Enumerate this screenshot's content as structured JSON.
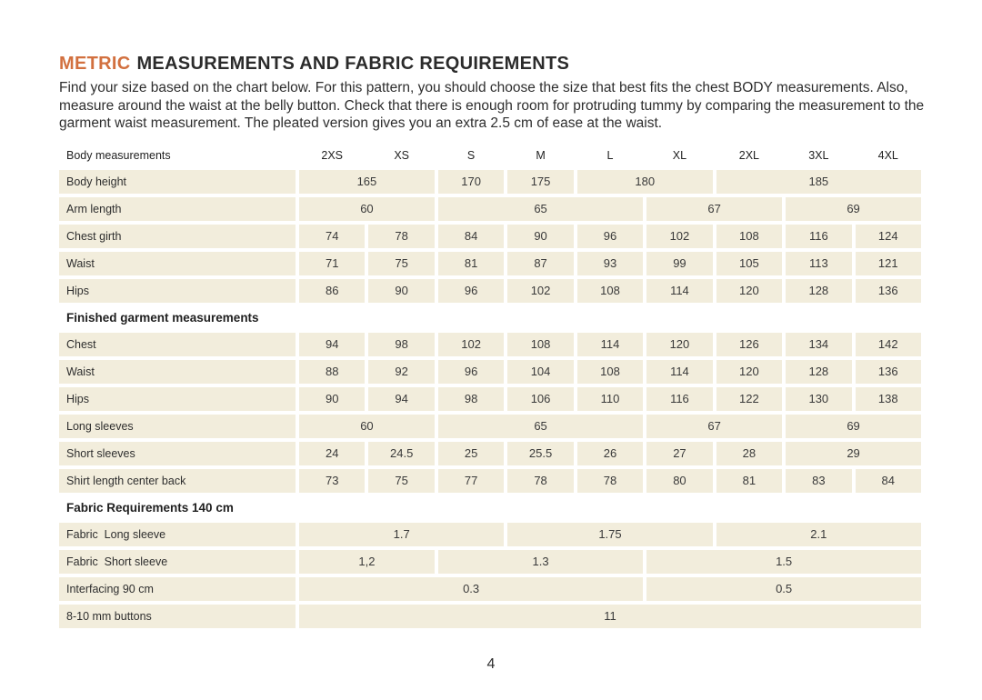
{
  "page": {
    "title_highlight": "METRIC",
    "title_rest": "MEASUREMENTS AND FABRIC REQUIREMENTS",
    "intro": "Find your size based on the chart below. For this pattern, you should choose the size that best fits the chest BODY measurements. Also, measure around the waist at the belly button. Check that there is enough room for protruding tummy by comparing the measurement to the garment waist measurement. The pleated version gives you an extra 2.5 cm of ease at the waist.",
    "page_number": "4"
  },
  "colors": {
    "accent_orange": "#D2703F",
    "cell_beige": "#F2EDDC",
    "text_dark": "#2B2B2B"
  },
  "size_table": {
    "header_label": "Body measurements",
    "sizes": [
      "2XS",
      "XS",
      "S",
      "M",
      "L",
      "XL",
      "2XL",
      "3XL",
      "4XL"
    ],
    "sections": [
      {
        "heading": null,
        "rows": [
          {
            "label": "Body height",
            "cells": [
              {
                "span": 2,
                "v": "165"
              },
              {
                "span": 1,
                "v": "170"
              },
              {
                "span": 1,
                "v": "175"
              },
              {
                "span": 2,
                "v": "180"
              },
              {
                "span": 3,
                "v": "185"
              }
            ]
          },
          {
            "label": "Arm length",
            "cells": [
              {
                "span": 2,
                "v": "60"
              },
              {
                "span": 3,
                "v": "65"
              },
              {
                "span": 2,
                "v": "67"
              },
              {
                "span": 2,
                "v": "69"
              }
            ]
          },
          {
            "label": "Chest girth",
            "cells": [
              {
                "span": 1,
                "v": "74"
              },
              {
                "span": 1,
                "v": "78"
              },
              {
                "span": 1,
                "v": "84"
              },
              {
                "span": 1,
                "v": "90"
              },
              {
                "span": 1,
                "v": "96"
              },
              {
                "span": 1,
                "v": "102"
              },
              {
                "span": 1,
                "v": "108"
              },
              {
                "span": 1,
                "v": "116"
              },
              {
                "span": 1,
                "v": "124"
              }
            ]
          },
          {
            "label": "Waist",
            "cells": [
              {
                "span": 1,
                "v": "71"
              },
              {
                "span": 1,
                "v": "75"
              },
              {
                "span": 1,
                "v": "81"
              },
              {
                "span": 1,
                "v": "87"
              },
              {
                "span": 1,
                "v": "93"
              },
              {
                "span": 1,
                "v": "99"
              },
              {
                "span": 1,
                "v": "105"
              },
              {
                "span": 1,
                "v": "113"
              },
              {
                "span": 1,
                "v": "121"
              }
            ]
          },
          {
            "label": "Hips",
            "cells": [
              {
                "span": 1,
                "v": "86"
              },
              {
                "span": 1,
                "v": "90"
              },
              {
                "span": 1,
                "v": "96"
              },
              {
                "span": 1,
                "v": "102"
              },
              {
                "span": 1,
                "v": "108"
              },
              {
                "span": 1,
                "v": "114"
              },
              {
                "span": 1,
                "v": "120"
              },
              {
                "span": 1,
                "v": "128"
              },
              {
                "span": 1,
                "v": "136"
              }
            ]
          }
        ]
      },
      {
        "heading": "Finished garment measurements",
        "rows": [
          {
            "label": "Chest",
            "cells": [
              {
                "span": 1,
                "v": "94"
              },
              {
                "span": 1,
                "v": "98"
              },
              {
                "span": 1,
                "v": "102"
              },
              {
                "span": 1,
                "v": "108"
              },
              {
                "span": 1,
                "v": "114"
              },
              {
                "span": 1,
                "v": "120"
              },
              {
                "span": 1,
                "v": "126"
              },
              {
                "span": 1,
                "v": "134"
              },
              {
                "span": 1,
                "v": "142"
              }
            ]
          },
          {
            "label": "Waist",
            "cells": [
              {
                "span": 1,
                "v": "88"
              },
              {
                "span": 1,
                "v": "92"
              },
              {
                "span": 1,
                "v": "96"
              },
              {
                "span": 1,
                "v": "104"
              },
              {
                "span": 1,
                "v": "108"
              },
              {
                "span": 1,
                "v": "114"
              },
              {
                "span": 1,
                "v": "120"
              },
              {
                "span": 1,
                "v": "128"
              },
              {
                "span": 1,
                "v": "136"
              }
            ]
          },
          {
            "label": "Hips",
            "cells": [
              {
                "span": 1,
                "v": "90"
              },
              {
                "span": 1,
                "v": "94"
              },
              {
                "span": 1,
                "v": "98"
              },
              {
                "span": 1,
                "v": "106"
              },
              {
                "span": 1,
                "v": "110"
              },
              {
                "span": 1,
                "v": "116"
              },
              {
                "span": 1,
                "v": "122"
              },
              {
                "span": 1,
                "v": "130"
              },
              {
                "span": 1,
                "v": "138"
              }
            ]
          },
          {
            "label": "Long sleeves",
            "cells": [
              {
                "span": 2,
                "v": "60"
              },
              {
                "span": 3,
                "v": "65"
              },
              {
                "span": 2,
                "v": "67"
              },
              {
                "span": 2,
                "v": "69"
              }
            ]
          },
          {
            "label": "Short sleeves",
            "cells": [
              {
                "span": 1,
                "v": "24"
              },
              {
                "span": 1,
                "v": "24.5"
              },
              {
                "span": 1,
                "v": "25"
              },
              {
                "span": 1,
                "v": "25.5"
              },
              {
                "span": 1,
                "v": "26"
              },
              {
                "span": 1,
                "v": "27"
              },
              {
                "span": 1,
                "v": "28"
              },
              {
                "span": 2,
                "v": "29"
              }
            ]
          },
          {
            "label": "Shirt length center back",
            "cells": [
              {
                "span": 1,
                "v": "73"
              },
              {
                "span": 1,
                "v": "75"
              },
              {
                "span": 1,
                "v": "77"
              },
              {
                "span": 1,
                "v": "78"
              },
              {
                "span": 1,
                "v": "78"
              },
              {
                "span": 1,
                "v": "80"
              },
              {
                "span": 1,
                "v": "81"
              },
              {
                "span": 1,
                "v": "83"
              },
              {
                "span": 1,
                "v": "84"
              }
            ]
          }
        ]
      },
      {
        "heading": "Fabric Requirements 140 cm",
        "rows": [
          {
            "label": "Fabric  Long sleeve",
            "cells": [
              {
                "span": 3,
                "v": "1.7"
              },
              {
                "span": 3,
                "v": "1.75"
              },
              {
                "span": 3,
                "v": "2.1"
              }
            ]
          },
          {
            "label": "Fabric  Short sleeve",
            "cells": [
              {
                "span": 2,
                "v": "1,2"
              },
              {
                "span": 3,
                "v": "1.3"
              },
              {
                "span": 4,
                "v": "1.5"
              }
            ]
          },
          {
            "label": "Interfacing 90 cm",
            "cells": [
              {
                "span": 5,
                "v": "0.3"
              },
              {
                "span": 4,
                "v": "0.5"
              }
            ]
          },
          {
            "label": "8-10 mm buttons",
            "cells": [
              {
                "span": 9,
                "v": "11"
              }
            ]
          }
        ]
      }
    ]
  }
}
